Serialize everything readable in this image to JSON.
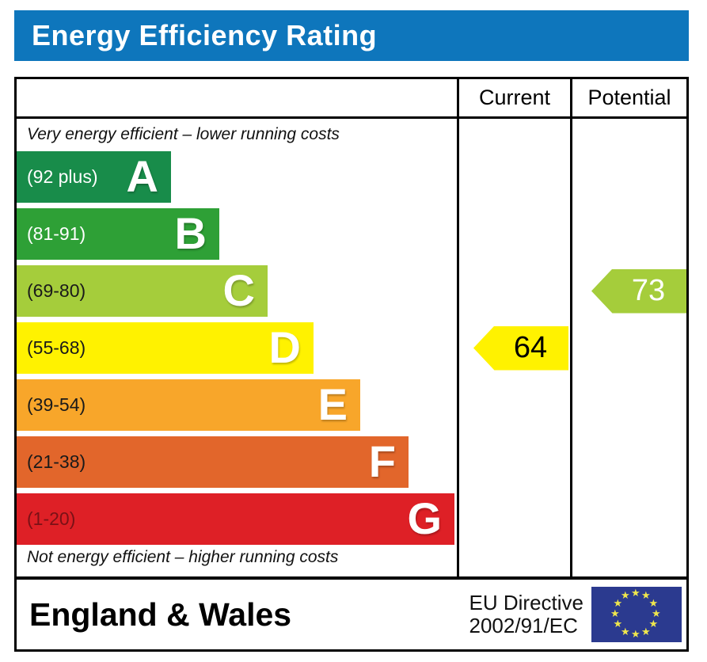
{
  "title_bar": {
    "label": "Energy Efficiency Rating",
    "bg_color": "#0e76bc",
    "text_color": "#ffffff"
  },
  "table": {
    "header": {
      "current": "Current",
      "potential": "Potential"
    },
    "notes": {
      "top": "Very energy efficient – lower running costs",
      "bottom": "Not energy efficient – higher running costs"
    }
  },
  "footer": {
    "region": "England & Wales",
    "directive_line1": "EU Directive",
    "directive_line2": "2002/91/EC",
    "eu_flag": {
      "icon": "eu-flag",
      "bg_color": "#2b3a8f",
      "star_color": "#efe74d",
      "star_count": 12
    }
  },
  "chart_data": {
    "type": "bar",
    "orientation": "horizontal",
    "title": "Energy Efficiency Rating",
    "scale": {
      "min": 1,
      "max": 100
    },
    "columns": [
      "Current",
      "Potential"
    ],
    "bands": [
      {
        "letter": "A",
        "range": "(92 plus)",
        "min": 92,
        "max": 100,
        "color": "#188c4a",
        "range_text_color": "#ffffff",
        "width_pct": 35
      },
      {
        "letter": "B",
        "range": "(81-91)",
        "min": 81,
        "max": 91,
        "color": "#2ea036",
        "range_text_color": "#ffffff",
        "width_pct": 46
      },
      {
        "letter": "C",
        "range": "(69-80)",
        "min": 69,
        "max": 80,
        "color": "#a5cd3b",
        "range_text_color": "#1a1a1a",
        "width_pct": 57
      },
      {
        "letter": "D",
        "range": "(55-68)",
        "min": 55,
        "max": 68,
        "color": "#fff200",
        "range_text_color": "#1a1a1a",
        "width_pct": 67.5
      },
      {
        "letter": "E",
        "range": "(39-54)",
        "min": 39,
        "max": 54,
        "color": "#f8a62a",
        "range_text_color": "#1a1a1a",
        "width_pct": 78
      },
      {
        "letter": "F",
        "range": "(21-38)",
        "min": 21,
        "max": 38,
        "color": "#e2662b",
        "range_text_color": "#1a1a1a",
        "width_pct": 89
      },
      {
        "letter": "G",
        "range": "(1-20)",
        "min": 1,
        "max": 20,
        "color": "#de2026",
        "range_text_color": "#7a1116",
        "width_pct": 99.5
      }
    ],
    "current": {
      "label": "Current",
      "value": 64,
      "band": "D",
      "arrow_color": "#fff200",
      "text_color": "#000000"
    },
    "potential": {
      "label": "Potential",
      "value": 73,
      "band": "C",
      "arrow_color": "#a5cd3b",
      "text_color": "#ffffff"
    }
  }
}
